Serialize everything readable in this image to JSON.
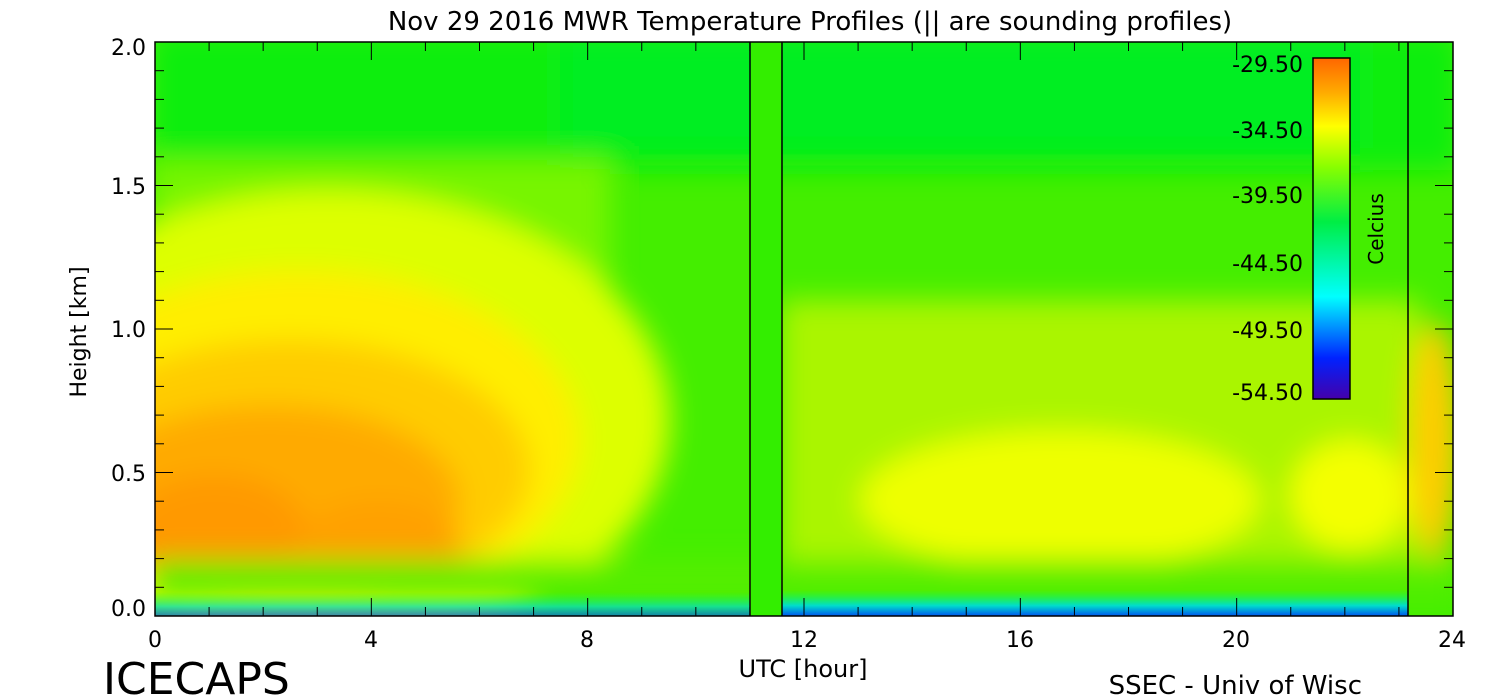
{
  "chart_data": {
    "type": "heatmap",
    "title": "Nov 29 2016 MWR Temperature Profiles (|| are sounding profiles)",
    "xlabel": "UTC [hour]",
    "ylabel": "Height [km]",
    "xlim": [
      0,
      24
    ],
    "ylim": [
      0,
      2.0
    ],
    "xticks": [
      "0",
      "4",
      "8",
      "12",
      "16",
      "20",
      "24"
    ],
    "yticks": [
      "0.0",
      "0.5",
      "1.0",
      "1.5",
      "2.0"
    ],
    "colorbar": {
      "label": "Celcius",
      "range": [
        -54.5,
        -29.5
      ],
      "ticks": [
        "-29.50",
        "-34.50",
        "-39.50",
        "-44.50",
        "-49.50",
        "-54.50"
      ]
    },
    "sounding_profile_hours": [
      11.0,
      11.6,
      23.1
    ],
    "no_data_hours": [
      11.0,
      11.6
    ]
  },
  "footer": {
    "left": "ICECAPS",
    "right": "SSEC - Univ of Wisc"
  }
}
